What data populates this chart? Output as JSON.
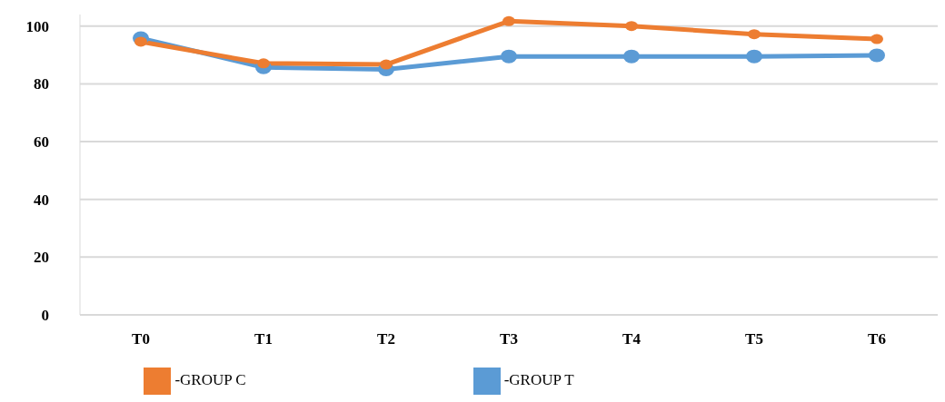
{
  "chart_data": {
    "type": "line",
    "categories": [
      "T0",
      "T1",
      "T2",
      "T3",
      "T4",
      "T5",
      "T6"
    ],
    "series": [
      {
        "name": "-GROUP C",
        "color": "#ed7d31",
        "values": [
          94.6,
          87.1,
          86.7,
          101.7,
          100,
          97.2,
          95.5
        ]
      },
      {
        "name": "-GROUP T",
        "color": "#5b9bd5",
        "values": [
          95.8,
          85.7,
          85.0,
          89.5,
          89.5,
          89.5,
          89.9
        ]
      }
    ],
    "ylim": [
      0,
      104
    ],
    "yticks": [
      0,
      20,
      40,
      60,
      80,
      100
    ],
    "grid": "y",
    "legend": "bottom",
    "marker": "circle",
    "line_style": "solid"
  }
}
